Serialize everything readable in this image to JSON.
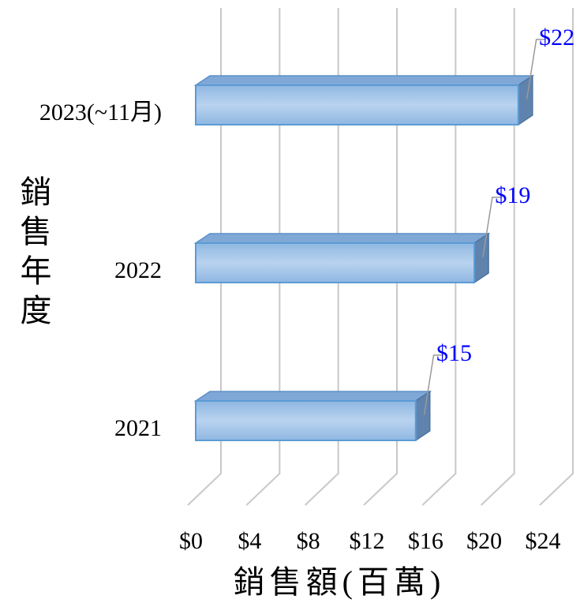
{
  "chart_data": {
    "type": "bar3d_horizontal",
    "xlabel": "銷售額(百萬)",
    "ylabel": "銷售年度",
    "categories": [
      "2023(~11月)",
      "2022",
      "2021"
    ],
    "values": [
      22,
      19,
      15
    ],
    "value_labels": [
      "$22",
      "$19",
      "$15"
    ],
    "color": "#9dc3e6",
    "xlim": [
      0,
      24
    ],
    "xticks": [
      {
        "value": 0,
        "label": "$0"
      },
      {
        "value": 4,
        "label": "$4"
      },
      {
        "value": 8,
        "label": "$8"
      },
      {
        "value": 12,
        "label": "$12"
      },
      {
        "value": 16,
        "label": "$16"
      },
      {
        "value": 20,
        "label": "$20"
      },
      {
        "value": 24,
        "label": "$24"
      }
    ],
    "grid": true
  }
}
